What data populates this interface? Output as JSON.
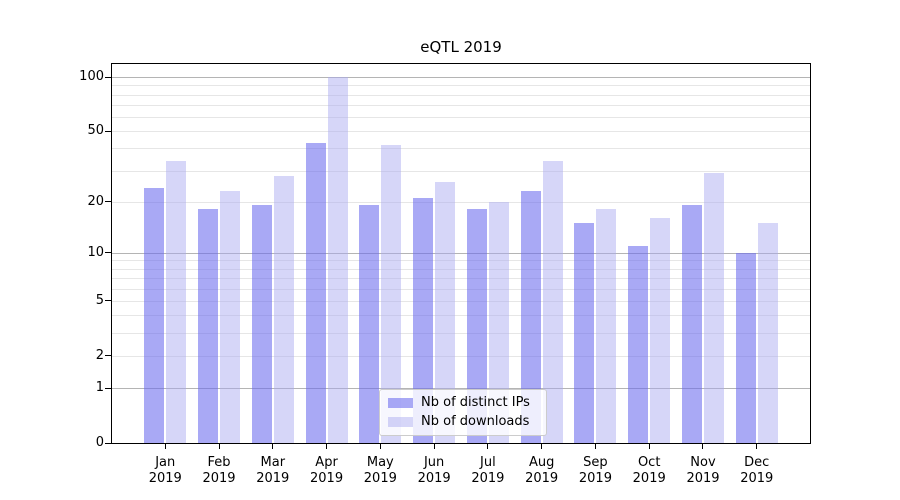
{
  "title": "eQTL 2019",
  "chart_data": {
    "type": "bar",
    "title": "eQTL 2019",
    "xlabel": "",
    "ylabel": "",
    "categories": [
      "Jan 2019",
      "Feb 2019",
      "Mar 2019",
      "Apr 2019",
      "May 2019",
      "Jun 2019",
      "Jul 2019",
      "Aug 2019",
      "Sep 2019",
      "Oct 2019",
      "Nov 2019",
      "Dec 2019"
    ],
    "x_tick_months": [
      "Jan",
      "Feb",
      "Mar",
      "Apr",
      "May",
      "Jun",
      "Jul",
      "Aug",
      "Sep",
      "Oct",
      "Nov",
      "Dec"
    ],
    "x_tick_year": "2019",
    "series": [
      {
        "name": "Nb of distinct IPs",
        "values": [
          24,
          18,
          19,
          43,
          19,
          21,
          18,
          23,
          15,
          11,
          19,
          10
        ],
        "color": "rgba(104,104,238,0.57)",
        "solid_color_hex": "#a9a9f3"
      },
      {
        "name": "Nb of downloads",
        "values": [
          34,
          23,
          28,
          100,
          42,
          26,
          20,
          34,
          18,
          16,
          29,
          15
        ],
        "color": "rgba(168,168,240,0.47)",
        "solid_color_hex": "#d9d9f8"
      }
    ],
    "yscale": "log1p",
    "ylim": [
      0,
      119
    ],
    "y_tick_values": [
      0,
      1,
      2,
      5,
      10,
      20,
      50,
      100
    ],
    "gridlines": {
      "major_values": [
        1,
        10,
        100
      ],
      "minor_values": [
        2,
        3,
        4,
        5,
        6,
        7,
        8,
        9,
        20,
        30,
        40,
        50,
        60,
        70,
        80,
        90
      ]
    },
    "grid_on": true,
    "legend_position": "lower center"
  },
  "legend": {
    "items": [
      {
        "label": "Nb of distinct IPs"
      },
      {
        "label": "Nb of downloads"
      }
    ]
  },
  "colors": {
    "background": "#ffffff",
    "spine": "#000000",
    "major_grid": "#b4b4b4",
    "minor_grid": "#e6e6e6",
    "tick_text": "#000000"
  }
}
